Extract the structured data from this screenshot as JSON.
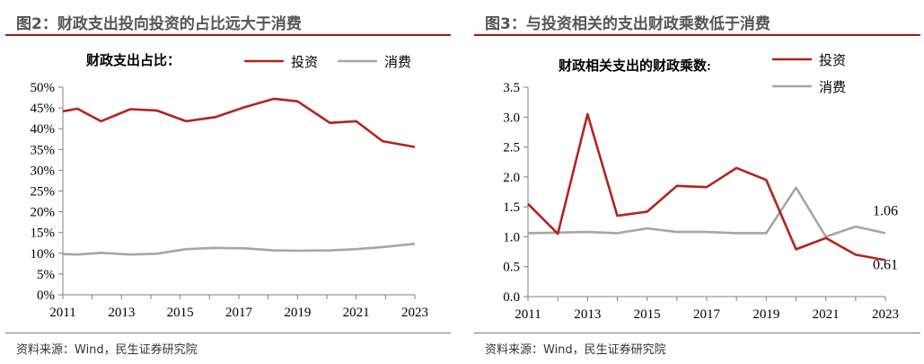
{
  "panels": [
    {
      "figure_title": "图2：财政支出投向投资的占比远大于消费",
      "source": "资料来源：Wind，民生证券研究院"
    },
    {
      "figure_title": "图3：与投资相关的支出财政乘数低于消费",
      "source": "资料来源：Wind，民生证券研究院"
    }
  ],
  "chart_data": [
    {
      "type": "line",
      "title": "财政支出占比：",
      "x": [
        2011,
        2011.5,
        2012.3,
        2013.3,
        2014.2,
        2015.2,
        2016.2,
        2017.2,
        2018.2,
        2019.0,
        2020.1,
        2021.0,
        2021.9,
        2023.0
      ],
      "series": [
        {
          "name": "投资",
          "color": "#b3231d",
          "values": [
            44.2,
            44.8,
            41.8,
            44.7,
            44.4,
            41.8,
            42.8,
            45.2,
            47.2,
            46.6,
            41.4,
            41.8,
            37.0,
            35.6
          ]
        },
        {
          "name": "消费",
          "color": "#a6a6a6",
          "values": [
            9.8,
            9.7,
            10.1,
            9.7,
            9.9,
            11.0,
            11.3,
            11.2,
            10.7,
            10.6,
            10.7,
            11.0,
            11.5,
            12.3
          ]
        }
      ],
      "y_ticks": [
        "0%",
        "5%",
        "10%",
        "15%",
        "20%",
        "25%",
        "30%",
        "35%",
        "40%",
        "45%",
        "50%"
      ],
      "x_ticks": [
        "2011",
        "2013",
        "2015",
        "2017",
        "2019",
        "2021",
        "2023"
      ],
      "ylim": [
        0,
        50
      ],
      "xlim": [
        2011,
        2023
      ],
      "grid": false,
      "legend": "top-right"
    },
    {
      "type": "line",
      "title": "财政相关支出的财政乘数:",
      "x": [
        2011,
        2012,
        2013,
        2014,
        2015,
        2016,
        2017,
        2018,
        2019,
        2020,
        2021,
        2022,
        2023
      ],
      "series": [
        {
          "name": "投资",
          "color": "#b3231d",
          "values": [
            1.55,
            1.05,
            3.05,
            1.35,
            1.42,
            1.85,
            1.83,
            2.15,
            1.95,
            0.79,
            0.98,
            0.7,
            0.61
          ]
        },
        {
          "name": "消费",
          "color": "#a6a6a6",
          "values": [
            1.06,
            1.07,
            1.08,
            1.06,
            1.14,
            1.08,
            1.08,
            1.06,
            1.06,
            1.82,
            1.0,
            1.17,
            1.06
          ]
        }
      ],
      "annotations": [
        "1.06",
        "0.61"
      ],
      "y_ticks": [
        "0.0",
        "0.5",
        "1.0",
        "1.5",
        "2.0",
        "2.5",
        "3.0",
        "3.5"
      ],
      "x_ticks": [
        "2011",
        "2013",
        "2015",
        "2017",
        "2019",
        "2021",
        "2023"
      ],
      "ylim": [
        0,
        3.5
      ],
      "xlim": [
        2011,
        2023
      ],
      "grid": false,
      "legend": "top-right"
    }
  ]
}
